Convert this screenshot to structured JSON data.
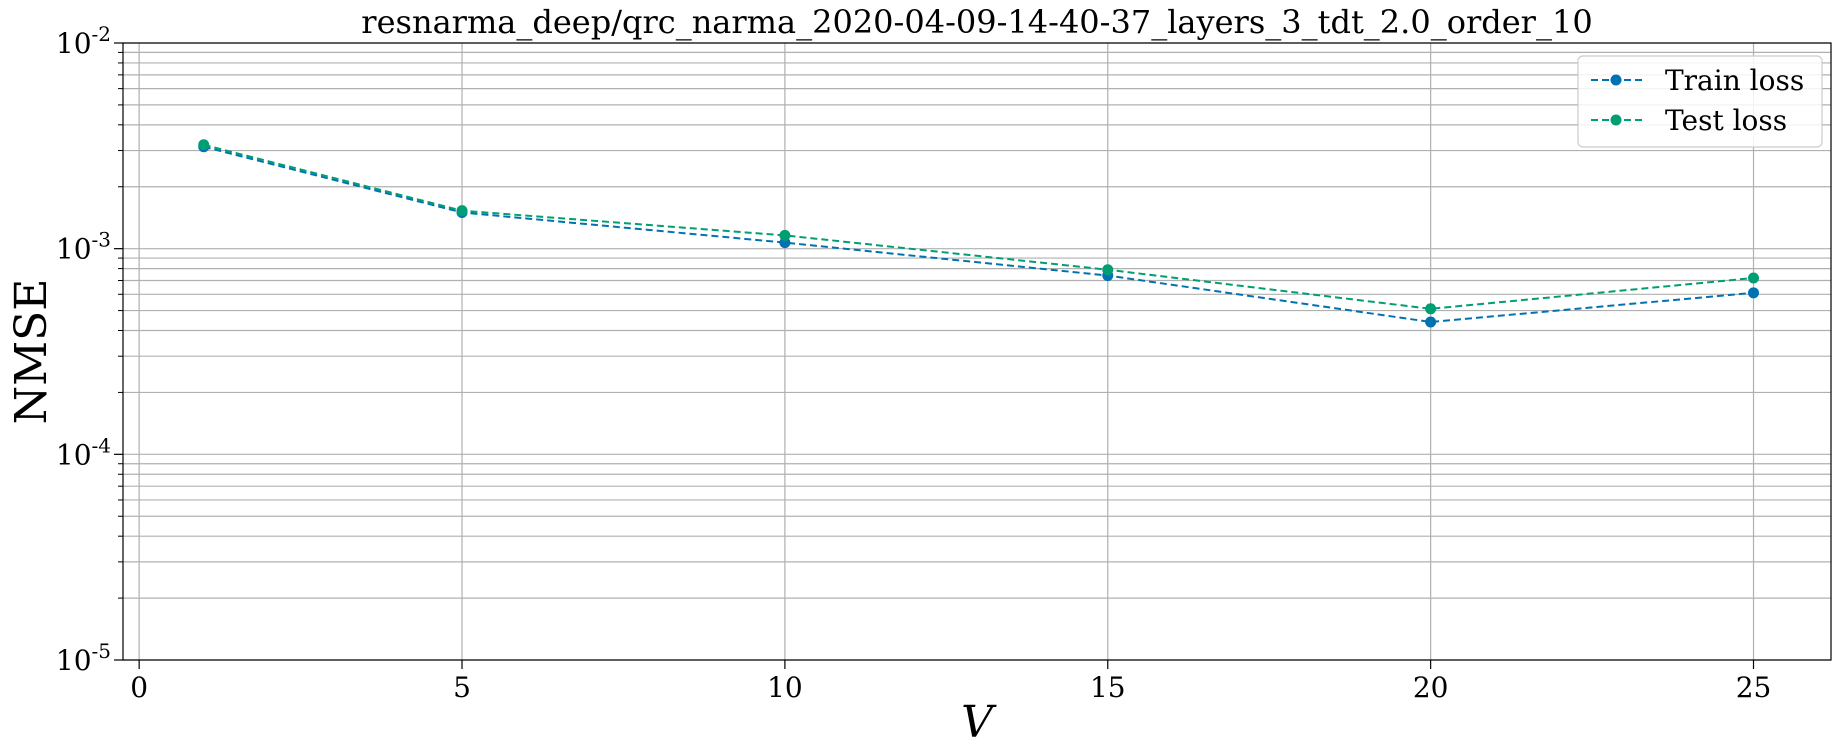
{
  "chart_data": {
    "type": "line",
    "title": "resnarma_deep/qrc_narma_2020-04-09-14-40-37_layers_3_tdt_2.0_order_10",
    "xlabel": "V",
    "ylabel": "NMSE",
    "xlim": [
      -0.25,
      26.2
    ],
    "ylim": [
      1e-05,
      0.01
    ],
    "yscale": "log",
    "grid": true,
    "legend_position": "top-right",
    "x_ticks": [
      0,
      5,
      10,
      15,
      20,
      25
    ],
    "y_ticks": [
      {
        "value": 0.01,
        "base": "10",
        "exp": "-2"
      },
      {
        "value": 0.001,
        "base": "10",
        "exp": "-3"
      },
      {
        "value": 0.0001,
        "base": "10",
        "exp": "-4"
      },
      {
        "value": 1e-05,
        "base": "10",
        "exp": "-5"
      }
    ],
    "x": [
      1,
      5,
      10,
      15,
      20,
      25
    ],
    "series": [
      {
        "name": "Train loss",
        "color": "#0072b2",
        "values": [
          0.00313,
          0.0015,
          0.00107,
          0.00074,
          0.00044,
          0.00061
        ]
      },
      {
        "name": "Test loss",
        "color": "#009e73",
        "values": [
          0.0032,
          0.00153,
          0.00116,
          0.00079,
          0.00051,
          0.00072
        ]
      }
    ]
  }
}
